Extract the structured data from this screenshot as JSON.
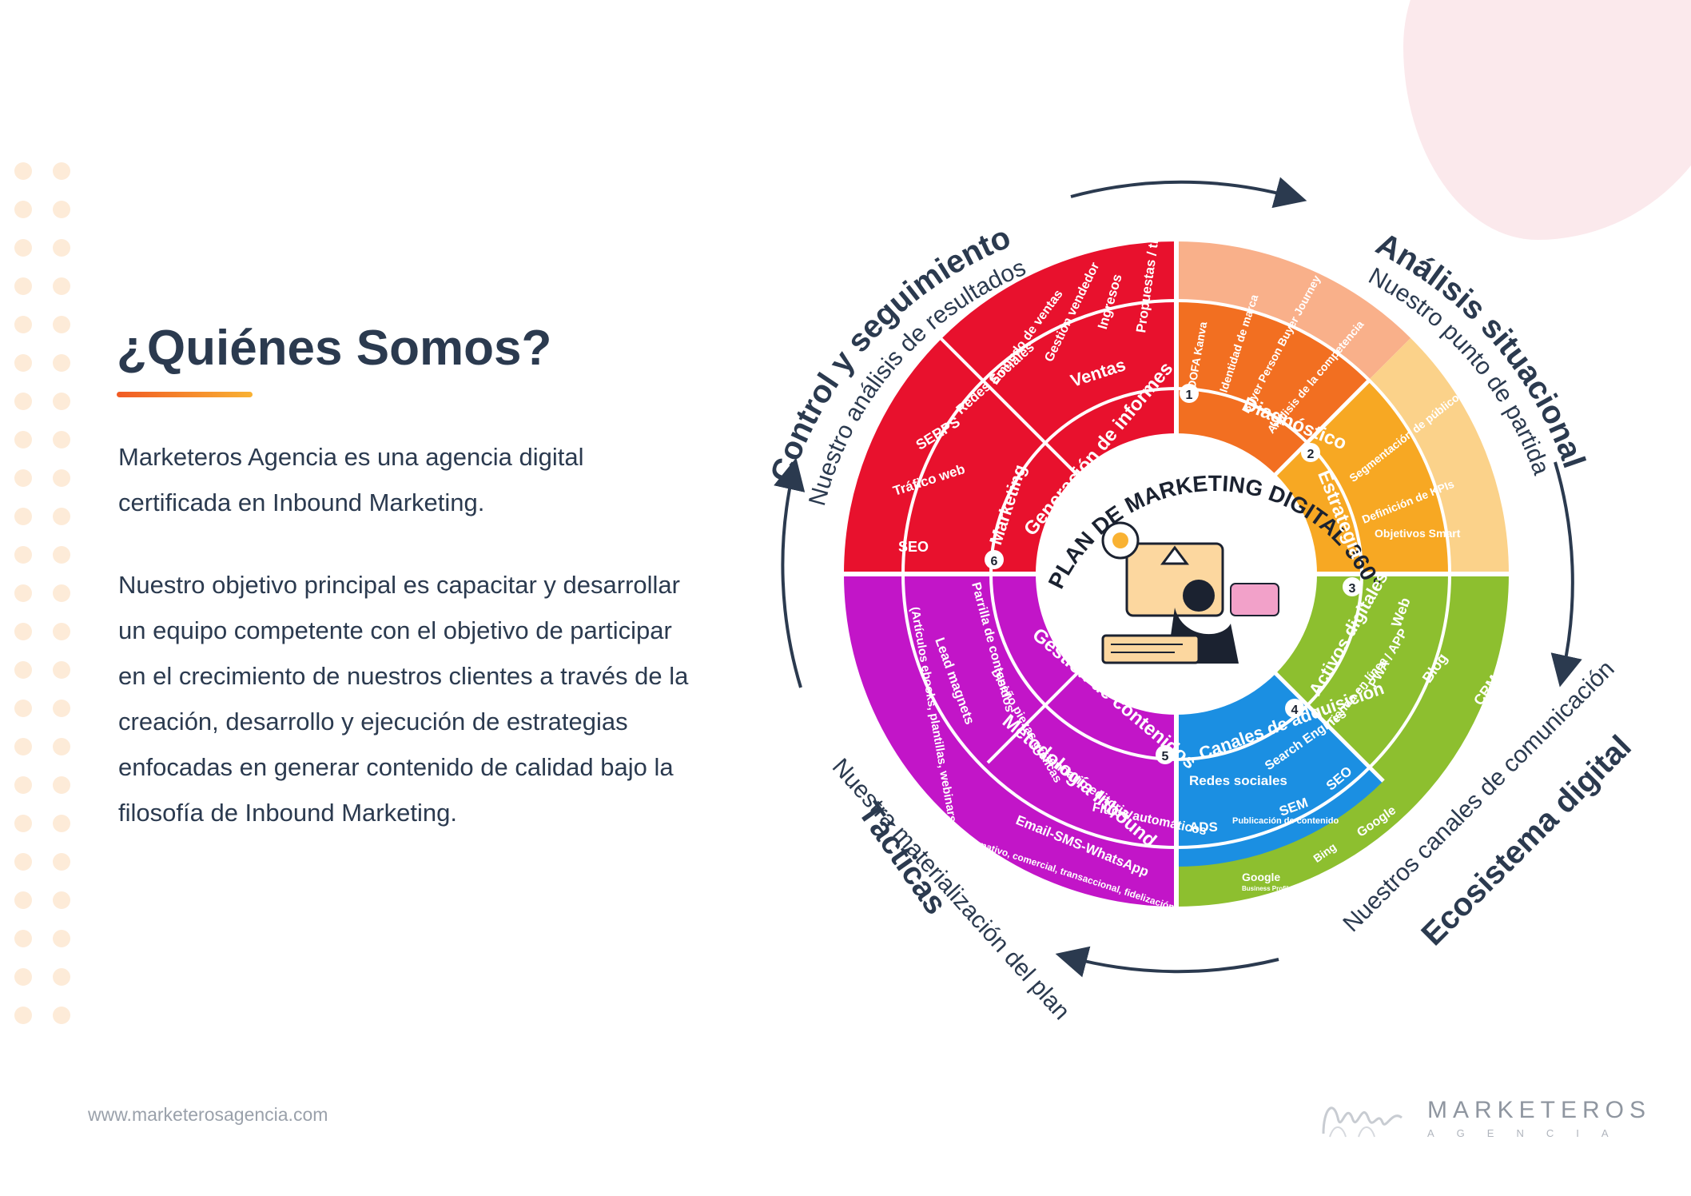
{
  "heading": "¿Quiénes Somos?",
  "paragraph1": "Marketeros Agencia es una agencia digital certificada en Inbound Marketing.",
  "paragraph2": "Nuestro objetivo principal es capacitar y desarrollar un equipo competente con el objetivo de participar en el crecimiento de nuestros clientes a través de la creación, desarrollo y ejecución de estrategias enfocadas en generar contenido de calidad bajo la filosofía de Inbound Marketing.",
  "website": "www.marketerosagencia.com",
  "brand": {
    "name": "MARKETEROS",
    "sub": "AGENCIA"
  },
  "colors": {
    "text": "#2b3a4f",
    "accent_start": "#f15a24",
    "accent_end": "#f9b233",
    "red": "#e8112d",
    "orange": "#f26f21",
    "amber": "#f7a823",
    "green": "#8dbf2f",
    "blue": "#1b8fe2",
    "magenta": "#c215c8"
  },
  "wheel": {
    "center_title": "PLAN DE MARKETING DIGITAL 360°",
    "phases": [
      {
        "title": "Análisis situacional",
        "subtitle": "Nuestro punto de partida"
      },
      {
        "title": "Ecosistema digital",
        "subtitle": "Nuestros canales de comunicación"
      },
      {
        "title": "Tácticas",
        "subtitle": "Nuestra materialización del plan"
      },
      {
        "title": "Control y seguimiento",
        "subtitle": "Nuestro análisis de resultados"
      }
    ],
    "stage_labels": {
      "diagnostico": "Diagnóstico",
      "estrategia": "Estrategia",
      "activos": "Activos digitales",
      "canales": "Canales de adquisición",
      "gestion": "Gestión de contenidos",
      "metodologia": "Metodología Inbound",
      "informes": "Generación de informes",
      "marketing": "Marketing",
      "ventas": "Ventas"
    },
    "stage_numbers": [
      "1",
      "2",
      "3",
      "4",
      "5",
      "6"
    ],
    "items": {
      "dofa": "DOFA Kanva",
      "identidad": "Identidad de marca",
      "buyer": "Buyer Person Buyer Journey",
      "competencia": "Análisis de la competencia",
      "segmentacion": "Segmentación de público",
      "kpis": "Definición de KPIs",
      "objetivos": "Objetivos Smart",
      "web": "Web",
      "pwa": "PWA / APP",
      "tienda": "Tienda en línea",
      "blog": "Blog",
      "crm": "CRM",
      "redes": "Redes sociales",
      "search": "Search Engines",
      "seo": "SEO",
      "ads": "ADS",
      "publicacion": "Publicación de contenido",
      "sem": "SEM",
      "bing": "Bing",
      "google": "Google",
      "google_bp": "Google",
      "google_bp_sub": "Business Profile",
      "parrilla": "Parrilla de contenidos",
      "lead": "Lead magnets",
      "lead_sub": "(Artículos ebooks, plantillas, webinars, etc.)",
      "diseno": "Diseño piezas gráficas",
      "calendario": "Calendario editorial",
      "flujos": "Flujos automáticos",
      "email": "Email-SMS-WhatsApp",
      "email_sub": "(Informativo, comercial, transaccional, fidelización)",
      "propuestas": "Propuestas / tratos",
      "ingresos": "Ingresos",
      "gestion_vendedor": "Gestión vendedor",
      "embudo": "Embudo de ventas",
      "redes_soc": "Redes Sociales",
      "serps": "SERPS",
      "trafico": "Tráfico web",
      "seo_m": "SEO"
    }
  }
}
